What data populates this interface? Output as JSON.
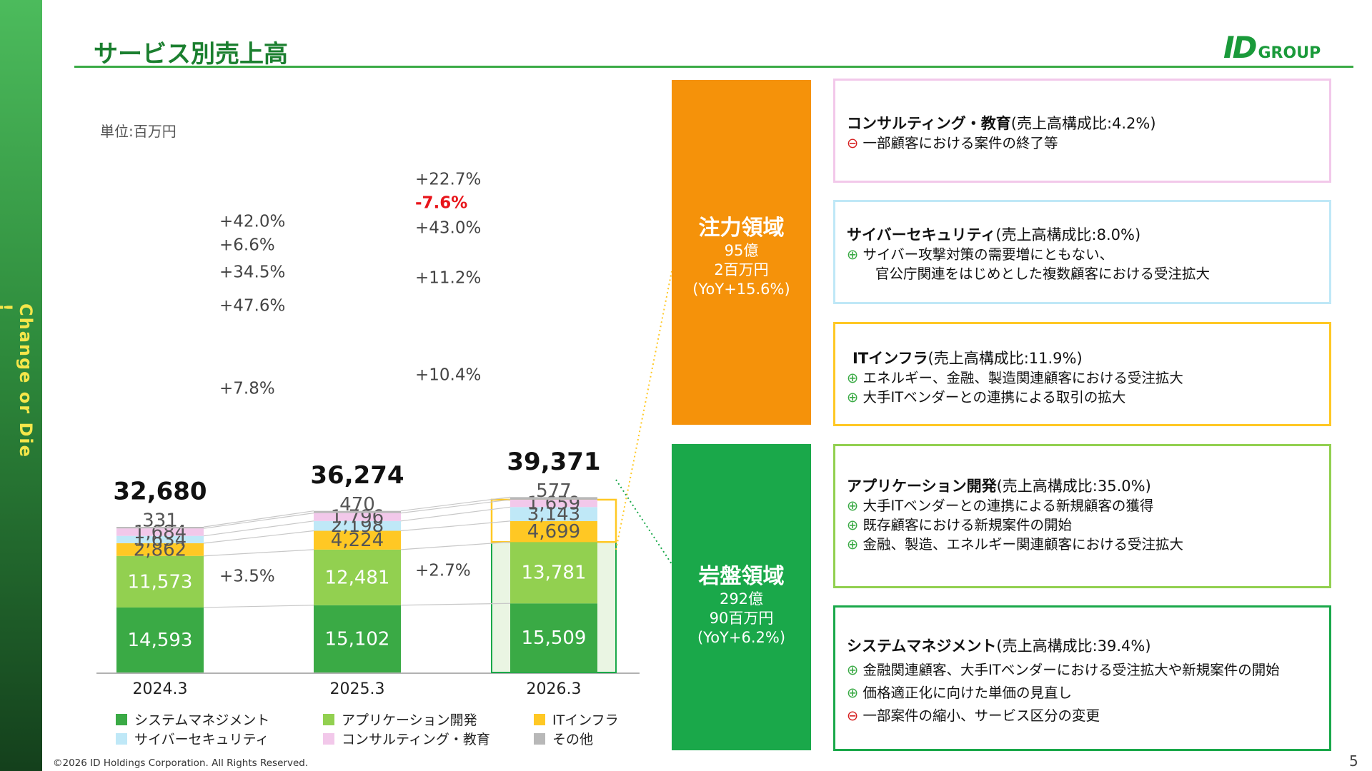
{
  "sidebar": {
    "slogan": "Change or Die !"
  },
  "header": {
    "title": "サービス別売上高",
    "logo_mark": "ID",
    "logo_text": "GROUP"
  },
  "unit_label": "単位:百万円",
  "chart_data": {
    "type": "bar",
    "stacked": true,
    "categories": [
      "2024.3",
      "2025.3",
      "2026.3"
    ],
    "totals": [
      32680,
      36274,
      39371
    ],
    "series": [
      {
        "name": "システムマネジメント",
        "color": "#3aaa45",
        "values": [
          14593,
          15102,
          15509
        ],
        "label_color": "#ffffff"
      },
      {
        "name": "アプリケーション開発",
        "color": "#92d050",
        "values": [
          11573,
          12481,
          13781
        ],
        "label_color": "#ffffff"
      },
      {
        "name": "ITインフラ",
        "color": "#ffc824",
        "values": [
          2862,
          4224,
          4699
        ],
        "label_color": "#555555"
      },
      {
        "name": "サイバーセキュリティ",
        "color": "#bfe8f7",
        "values": [
          1634,
          2198,
          3143
        ],
        "label_color": "#555555"
      },
      {
        "name": "コンサルティング・教育",
        "color": "#f2c8ea",
        "values": [
          1684,
          1796,
          1659
        ],
        "label_color": "#555555"
      },
      {
        "name": "その他",
        "color": "#b8b8b8",
        "values": [
          331,
          470,
          577
        ],
        "label_color": "#555555"
      }
    ],
    "yoy_growth": [
      {
        "between": [
          "2024.3",
          "2025.3"
        ],
        "values": [
          "+3.5%",
          "+7.8%",
          "+47.6%",
          "+34.5%",
          "+6.6%",
          "+42.0%"
        ]
      },
      {
        "between": [
          "2025.3",
          "2026.3"
        ],
        "values": [
          "+2.7%",
          "+10.4%",
          "+11.2%",
          "+43.0%",
          "-7.6%",
          "+22.7%"
        ]
      }
    ],
    "negative_color": "#e8141a",
    "ylim": [
      0,
      40000
    ],
    "grid": false,
    "legend_position": "bottom"
  },
  "categories_panel": {
    "focus": {
      "title": "注力領域",
      "lines": [
        "95億",
        "2百万円",
        "(YoY+15.6%)"
      ],
      "color": "#f5920a"
    },
    "bedrock": {
      "title": "岩盤領域",
      "lines": [
        "292億",
        "90百万円",
        "(YoY+6.2%)"
      ],
      "color": "#1aa84a"
    }
  },
  "details": [
    {
      "name": "コンサルティング・教育",
      "share": "(売上高構成比:4.2%)",
      "border": "#f2c8ea",
      "bullets": [
        {
          "mark": "⊖",
          "type": "minus",
          "text": "一部顧客における案件の終了等"
        }
      ]
    },
    {
      "name": "サイバーセキュリティ",
      "share": "(売上高構成比:8.0%)",
      "border": "#bfe8f7",
      "bullets": [
        {
          "mark": "⊕",
          "type": "plus",
          "text": "サイバー攻撃対策の需要増にともない、"
        },
        {
          "mark": "",
          "type": "plus",
          "text": "官公庁関連をはじめとした複数顧客における受注拡大"
        }
      ]
    },
    {
      "name": "ITインフラ",
      "share": "(売上高構成比:11.9%)",
      "border": "#ffc824",
      "bullets": [
        {
          "mark": "⊕",
          "type": "plus",
          "text": "エネルギー、金融、製造関連顧客における受注拡大"
        },
        {
          "mark": "⊕",
          "type": "plus",
          "text": "大手ITベンダーとの連携による取引の拡大"
        }
      ]
    },
    {
      "name": "アプリケーション開発",
      "share": "(売上高構成比:35.0%)",
      "border": "#92d050",
      "bullets": [
        {
          "mark": "⊕",
          "type": "plus",
          "text": "大手ITベンダーとの連携による新規顧客の獲得"
        },
        {
          "mark": "⊕",
          "type": "plus",
          "text": "既存顧客における新規案件の開始"
        },
        {
          "mark": "⊕",
          "type": "plus",
          "text": "金融、製造、エネルギー関連顧客における受注拡大"
        }
      ]
    },
    {
      "name": "システムマネジメント",
      "share": "(売上高構成比:39.4%)",
      "border": "#1aa84a",
      "bullets": [
        {
          "mark": "⊕",
          "type": "plus",
          "text": "金融関連顧客、大手ITベンダーにおける受注拡大や新規案件の開始"
        },
        {
          "mark": "⊕",
          "type": "plus",
          "text": "価格適正化に向けた単価の見直し"
        },
        {
          "mark": "⊖",
          "type": "minus",
          "text": "一部案件の縮小、サービス区分の変更"
        }
      ]
    }
  ],
  "footer": {
    "copyright": "©2026 ID Holdings Corporation. All Rights Reserved.",
    "page": "5"
  }
}
